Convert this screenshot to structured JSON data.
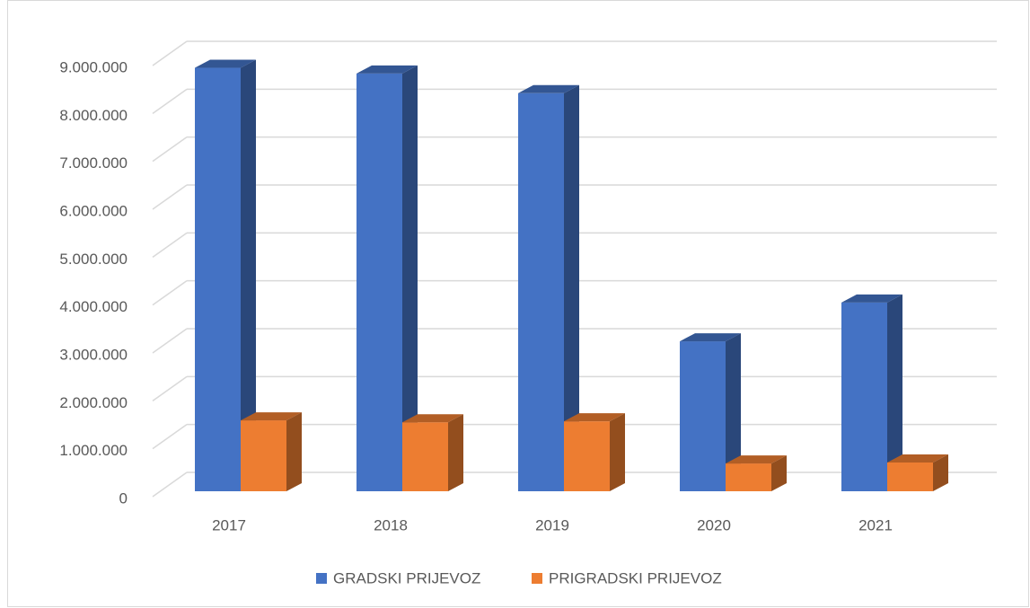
{
  "chart_data": {
    "type": "bar3d",
    "categories": [
      "2017",
      "2018",
      "2019",
      "2020",
      "2021"
    ],
    "series": [
      {
        "name": "GRADSKI PRIJEVOZ",
        "color": "#4472c4",
        "values": [
          8840000,
          8720000,
          8310000,
          3130000,
          3940000
        ]
      },
      {
        "name": "PRIGRADSKI PRIJEVOZ",
        "color": "#ed7d31",
        "values": [
          1480000,
          1440000,
          1460000,
          580000,
          600000
        ]
      }
    ],
    "ylim": [
      0,
      9000000
    ],
    "yticks": [
      0,
      {
        "value": 1000000,
        "label": "1.000.000"
      },
      {
        "value": 2000000,
        "label": "2.000.000"
      },
      {
        "value": 3000000,
        "label": "3.000.000"
      },
      {
        "value": 4000000,
        "label": "4.000.000"
      },
      {
        "value": 5000000,
        "label": "5.000.000"
      },
      {
        "value": 6000000,
        "label": "6.000.000"
      },
      {
        "value": 7000000,
        "label": "7.000.000"
      },
      {
        "value": 8000000,
        "label": "8.000.000"
      },
      {
        "value": 9000000,
        "label": "9.000.000"
      }
    ],
    "grid": true,
    "legend": "bottom"
  }
}
